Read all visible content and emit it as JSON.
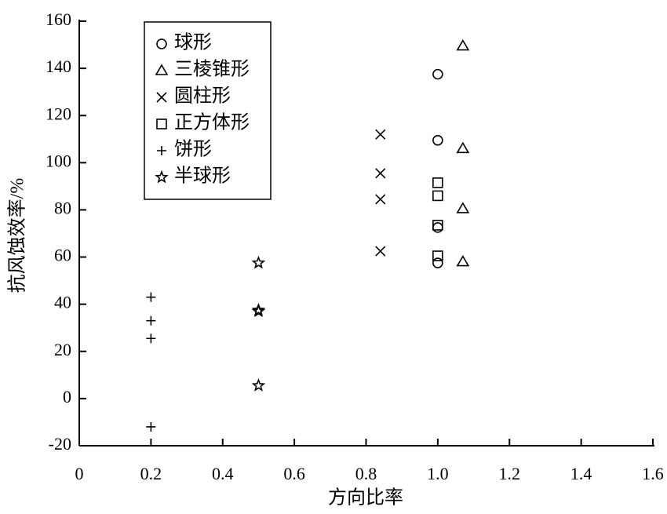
{
  "chart_data": {
    "type": "scatter",
    "x_label": "方向比率",
    "y_label": "抗风蚀效率/%",
    "xlim": [
      0,
      1.6
    ],
    "ylim": [
      -20,
      160
    ],
    "xticks": [
      0,
      0.2,
      0.4,
      0.6,
      0.8,
      {
        "value": 1,
        "label": "1.0"
      },
      1.2,
      1.4,
      1.6
    ],
    "yticks": [
      -20,
      0,
      20,
      40,
      60,
      80,
      100,
      120,
      140,
      160
    ],
    "grid": false,
    "legend": "upper left",
    "series": [
      {
        "name": "球形",
        "color": "#000000",
        "marker": "circle",
        "x": [
          1,
          1,
          1,
          1
        ],
        "values": [
          137.5,
          109.5,
          72.5,
          57.5
        ]
      },
      {
        "name": "三棱锥形",
        "color": "#000000",
        "marker": "triangle",
        "x": [
          1.07,
          1.07,
          1.07,
          1.07
        ],
        "values": [
          149.5,
          106,
          80.5,
          58
        ]
      },
      {
        "name": "圆柱形",
        "color": "#000000",
        "marker": "x",
        "x": [
          0.84,
          0.84,
          0.84,
          0.84
        ],
        "values": [
          112,
          95.5,
          84.5,
          62.5
        ]
      },
      {
        "name": "正方体形",
        "color": "#000000",
        "marker": "square",
        "x": [
          1,
          1,
          1,
          1
        ],
        "values": [
          91.5,
          86,
          73.5,
          60.5
        ]
      },
      {
        "name": "饼形",
        "color": "#000000",
        "marker": "plus",
        "x": [
          0.2,
          0.2,
          0.2,
          0.2
        ],
        "values": [
          43,
          33,
          25.5,
          -12
        ]
      },
      {
        "name": "半球形",
        "color": "#000000",
        "marker": "star",
        "x": [
          0.5,
          0.5,
          0.5,
          0.5
        ],
        "values": [
          57.5,
          37.5,
          37,
          5.5
        ]
      }
    ]
  }
}
